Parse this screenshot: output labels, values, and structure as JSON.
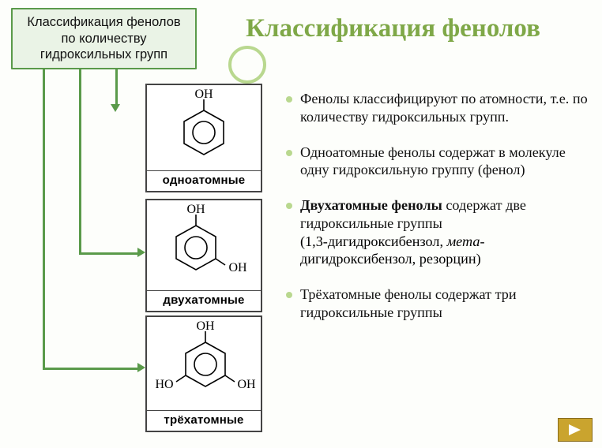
{
  "title": "Классификация фенолов",
  "root_box": "Классификация фенолов по количеству гидроксильных групп",
  "colors": {
    "accent_border": "#5a9a4a",
    "accent_fill": "#eaf3e6",
    "title_color": "#7fa848",
    "decor_ring": "#b9d88f",
    "bullet_dot": "#b9d88f",
    "box_border": "#444444",
    "background": "#fdfefb",
    "nav_bg": "#caa42e",
    "nav_border": "#8a6d1a"
  },
  "molecules": [
    {
      "label": "одноатомные",
      "oh_positions": [
        "top"
      ]
    },
    {
      "label": "двухатомные",
      "oh_positions": [
        "top",
        "bottom-right"
      ]
    },
    {
      "label": "трёхатомные",
      "oh_positions": [
        "top",
        "bottom-right",
        "bottom-left"
      ]
    }
  ],
  "bullets": [
    {
      "html": "Фенолы классифицируют по атомности, т.е. по количеству гидроксильных групп."
    },
    {
      "html": "Одноатомные фенолы содержат в молекуле одну гидроксильную группу (фенол)"
    },
    {
      "html": "<b>Двухатомные фенолы</b> содержат две гидроксильные группы",
      "sub": "(1,3-дигидроксибензол, <span class=\"em\">мета</span>-дигидроксибензол, резорцин)"
    },
    {
      "html": "Трёхатомные фенолы содержат три гидроксильные группы"
    }
  ],
  "nav": {
    "next_label": "next-slide"
  }
}
